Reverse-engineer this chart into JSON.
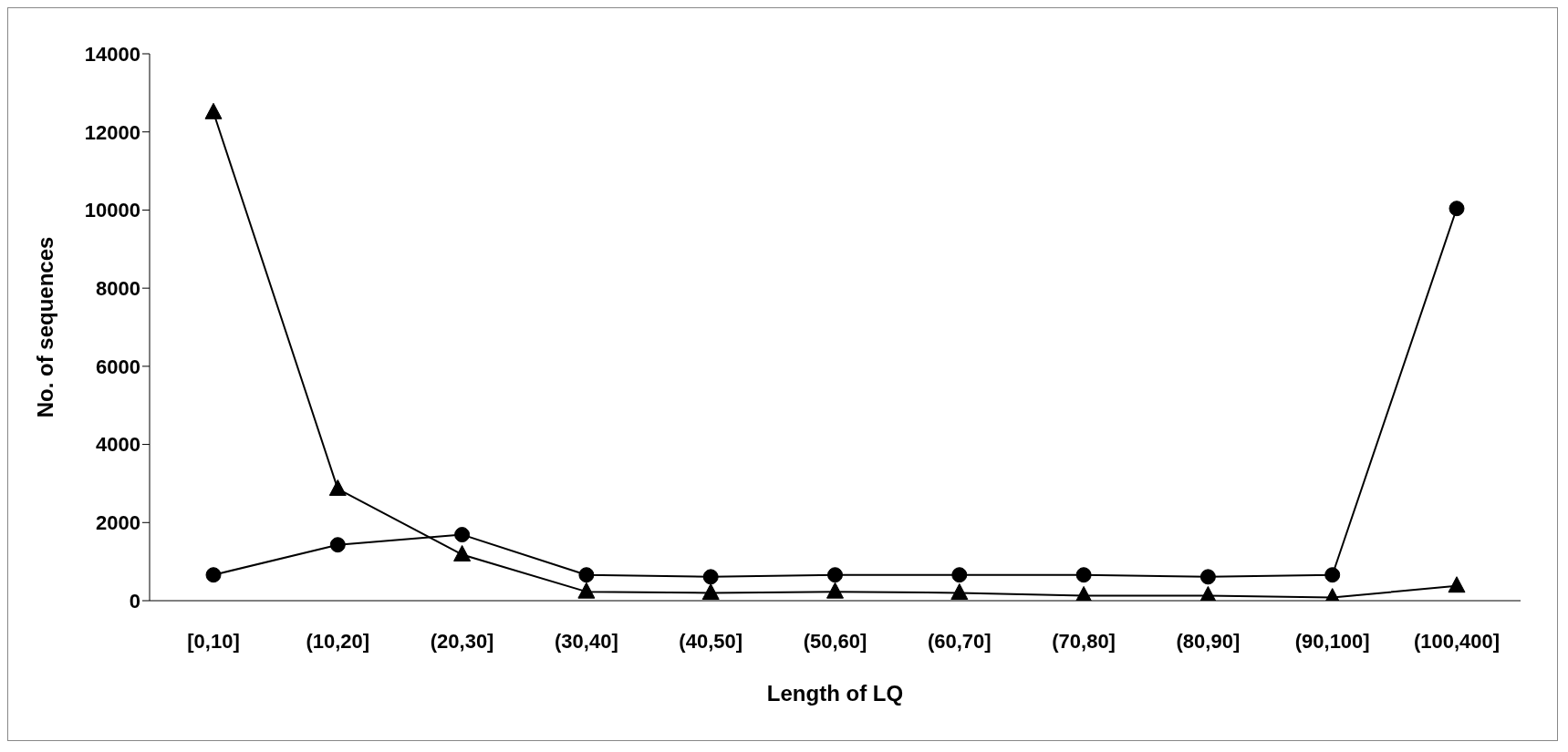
{
  "chart_data": {
    "type": "line",
    "xlabel": "Length of LQ",
    "ylabel": "No. of sequences",
    "categories": [
      "[0,10]",
      "(10,20]",
      "(20,30]",
      "(30,40]",
      "(40,50]",
      "(50,60]",
      "(60,70]",
      "(70,80]",
      "(80,90]",
      "(90,100]",
      "(100,400]"
    ],
    "series": [
      {
        "color": "#000000",
        "marker": "circle",
        "values": [
          660,
          1430,
          1690,
          660,
          610,
          660,
          660,
          660,
          610,
          660,
          10040
        ]
      },
      {
        "color": "#000000",
        "marker": "triangle",
        "values": [
          12500,
          2860,
          1180,
          230,
          200,
          230,
          200,
          130,
          130,
          80,
          380
        ]
      }
    ],
    "ylim": [
      0,
      14000
    ],
    "yticks": [
      0,
      2000,
      4000,
      6000,
      8000,
      10000,
      12000,
      14000
    ],
    "grid": false,
    "legend": false,
    "line_style": "solid"
  }
}
